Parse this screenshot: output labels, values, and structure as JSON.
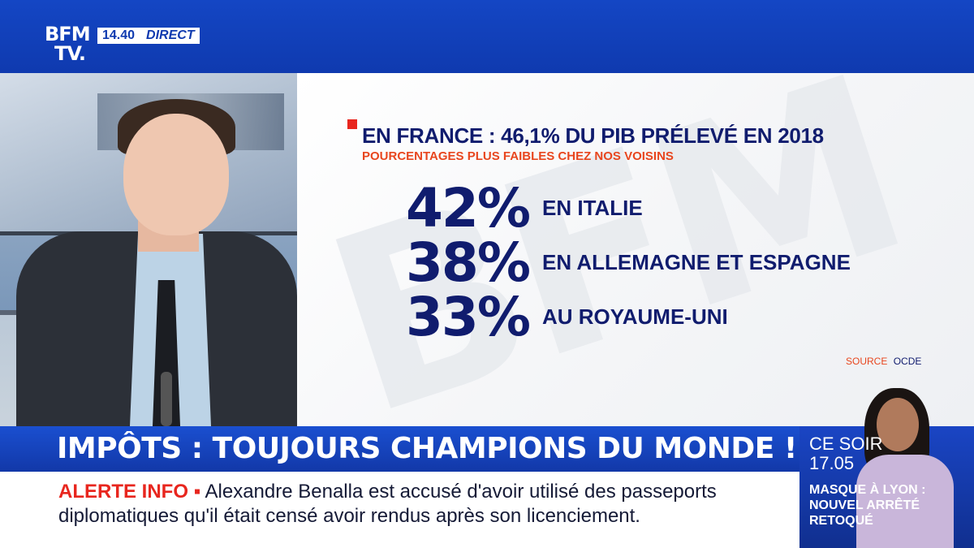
{
  "channel": {
    "logo_line1": "BFM",
    "logo_line2": "TV.",
    "time": "14.40",
    "live_label": "DIRECT"
  },
  "graphic": {
    "headline": "EN FRANCE : 46,1% DU PIB PRÉLEVÉ EN 2018",
    "subline": "POURCENTAGES PLUS FAIBLES CHEZ NOS VOISINS",
    "watermark": "BFM",
    "stats": [
      {
        "value": "42%",
        "label": "EN ITALIE"
      },
      {
        "value": "38%",
        "label": "EN ALLEMAGNE ET ESPAGNE"
      },
      {
        "value": "33%",
        "label": "AU ROYAUME-UNI"
      }
    ],
    "source_label": "SOURCE",
    "source_value": "OCDE"
  },
  "banner": {
    "title": "IMPÔTS : TOUJOURS CHAMPIONS DU MONDE !"
  },
  "ticker": {
    "alert_label": "ALERTE INFO ▪",
    "text": "Alexandre Benalla est accusé d'avoir utilisé des passeports diplomatiques qu'il était censé avoir rendus après son licenciement."
  },
  "promo": {
    "when": "CE SOIR",
    "time": "17.05",
    "title": "MASQUE À LYON : NOUVEL ARRÊTÉ RETOQUÉ"
  },
  "colors": {
    "brand_blue": "#0f3aaf",
    "navy_text": "#101c6e",
    "accent_red": "#e8261e",
    "accent_orange": "#e8461e"
  }
}
